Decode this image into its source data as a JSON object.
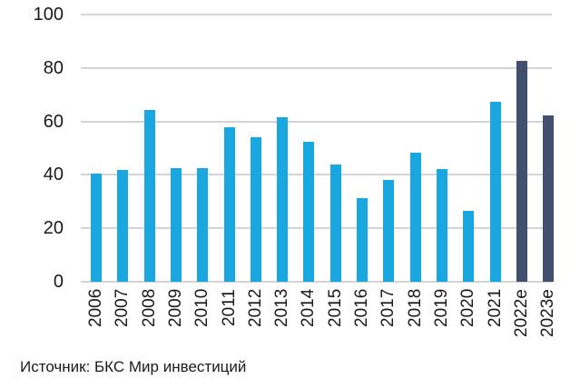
{
  "chart_data": {
    "type": "bar",
    "title": "",
    "xlabel": "",
    "ylabel": "",
    "ylim": [
      0,
      100
    ],
    "yticks": [
      0,
      20,
      40,
      60,
      80,
      100
    ],
    "grid": true,
    "legend": null,
    "categories": [
      "2006",
      "2007",
      "2008",
      "2009",
      "2010",
      "2011",
      "2012",
      "2013",
      "2014",
      "2015",
      "2016",
      "2017",
      "2018",
      "2019",
      "2020",
      "2021",
      "2022e",
      "2023e"
    ],
    "values": [
      40.5,
      42,
      64.3,
      42.5,
      42.5,
      57.8,
      54,
      61.6,
      52.4,
      43.9,
      31.3,
      38,
      48.2,
      42.2,
      26.5,
      67.2,
      82.5,
      62.2
    ],
    "colors": {
      "actual": "#1aa7e0",
      "estimate": "#434f6e",
      "grid": "#d4d4d4"
    },
    "estimate_categories": [
      "2022e",
      "2023e"
    ]
  },
  "footer": {
    "source": "Источник: БКС Мир инвестиций"
  }
}
